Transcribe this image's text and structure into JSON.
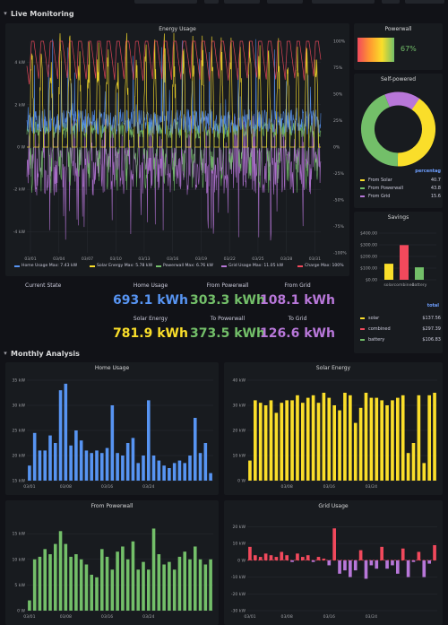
{
  "rows": {
    "live": "Live Monitoring",
    "monthly": "Monthly Analysis"
  },
  "colors": {
    "home": "#5794f2",
    "solar": "#fade2a",
    "powerwall": "#73bf69",
    "grid": "#b877d9",
    "charge": "#f2495c"
  },
  "energy_usage": {
    "title": "Energy Usage",
    "y_left_ticks": [
      "4 kW",
      "2 kW",
      "0 W",
      "-2 kW",
      "-4 kW"
    ],
    "y_right_ticks": [
      "100%",
      "75%",
      "50%",
      "25%",
      "0%",
      "-25%",
      "-50%",
      "-75%",
      "-100%"
    ],
    "x_ticks": [
      "03/01",
      "03/04",
      "03/07",
      "03/10",
      "03/13",
      "03/16",
      "03/19",
      "03/22",
      "03/25",
      "03/28",
      "03/31"
    ],
    "legend": [
      {
        "key": "home",
        "text": "Home Usage  Max: 7.43 kW"
      },
      {
        "key": "solar",
        "text": "Solar Energy  Max: 5.78 kW"
      },
      {
        "key": "powerwall",
        "text": "Powerwall  Max: 6.76 kW"
      },
      {
        "key": "grid",
        "text": "Grid Usage  Max: 11.05 kW"
      },
      {
        "key": "charge",
        "text": "Charge  Max: 100%"
      }
    ]
  },
  "powerwall": {
    "title": "Powerwall",
    "value": "67%",
    "level": 0.67
  },
  "self_powered": {
    "title": "Self-powered",
    "header": "percentag",
    "items": [
      {
        "key": "solar",
        "label": "From Solar",
        "value": "40.7",
        "fraction": 0.407
      },
      {
        "key": "powerwall",
        "label": "From Powerwall",
        "value": "43.8",
        "fraction": 0.438
      },
      {
        "key": "grid",
        "label": "From Grid",
        "value": "15.6",
        "fraction": 0.156
      }
    ]
  },
  "savings": {
    "title": "Savings",
    "y_ticks": [
      "$400.00",
      "$300.00",
      "$200.00",
      "$100.00",
      "$0.00"
    ],
    "bars": [
      {
        "key": "solar",
        "label": "solar",
        "value": 137.56
      },
      {
        "key": "charge",
        "label": "combined",
        "value": 297.39
      },
      {
        "key": "powerwall",
        "label": "battery",
        "value": 106.83
      }
    ],
    "table_header": "total",
    "table": [
      {
        "key": "solar",
        "label": "solar",
        "value": "$137.56"
      },
      {
        "key": "charge",
        "label": "combined",
        "value": "$297.39"
      },
      {
        "key": "powerwall",
        "label": "battery",
        "value": "$106.83"
      }
    ]
  },
  "stats": {
    "current_state": "Current State",
    "home_usage": {
      "title": "Home Usage",
      "value": "693.1 kWh"
    },
    "from_powerwall": {
      "title": "From Powerwall",
      "value": "303.3 kWh"
    },
    "from_grid": {
      "title": "From Grid",
      "value": "108.1 kWh"
    },
    "solar_energy": {
      "title": "Solar Energy",
      "value": "781.9 kWh"
    },
    "to_powerwall": {
      "title": "To Powerwall",
      "value": "373.5 kWh"
    },
    "to_grid": {
      "title": "To Grid",
      "value": "126.6 kWh"
    }
  },
  "chart_data": [
    {
      "type": "bar",
      "title": "Home Usage",
      "x_ticks": [
        "03/01",
        "03/08",
        "03/16",
        "03/24"
      ],
      "y_ticks": [
        "35 kW",
        "30 kW",
        "25 kW",
        "20 kW",
        "15 kW"
      ],
      "ylim": [
        15,
        35
      ],
      "values": [
        18,
        24.5,
        21,
        21,
        24,
        22.5,
        33,
        34.3,
        22,
        25,
        23,
        21,
        20.5,
        21,
        20.5,
        21.5,
        30,
        20.5,
        20,
        22.5,
        23.5,
        18.5,
        20,
        31,
        20,
        19,
        18,
        17.5,
        18.5,
        19,
        18.5,
        20,
        27.5,
        20.5,
        22.5,
        16.5
      ]
    },
    {
      "type": "bar",
      "title": "Solar Energy",
      "x_ticks": [
        "03/08",
        "03/16",
        "03/24"
      ],
      "y_ticks": [
        "40 kW",
        "30 kW",
        "20 kW",
        "10 kW",
        "0 W"
      ],
      "ylim": [
        0,
        40
      ],
      "values": [
        8,
        32,
        31,
        30,
        32,
        27,
        31,
        32,
        32,
        34,
        31,
        33,
        34,
        31,
        35,
        33,
        30,
        28,
        35,
        34,
        23,
        29,
        35,
        33,
        33,
        32,
        30,
        32,
        33,
        34,
        11,
        15,
        34,
        7,
        34,
        35
      ]
    },
    {
      "type": "bar",
      "title": "From Powerwall",
      "x_ticks": [
        "03/01",
        "03/08",
        "03/16",
        "03/24"
      ],
      "y_ticks": [
        "15 kW",
        "10 kW",
        "5 kW",
        "0 W"
      ],
      "ylim": [
        0,
        18
      ],
      "values": [
        2,
        10,
        10.5,
        12,
        11,
        13,
        15.5,
        13,
        10.5,
        11,
        10,
        9,
        7,
        6.5,
        12,
        10.5,
        8,
        11.5,
        12.5,
        10,
        13.5,
        8,
        9.5,
        8,
        16,
        11,
        9,
        9.5,
        8,
        10.5,
        11.5,
        10,
        12.5,
        10,
        9,
        10
      ]
    },
    {
      "type": "bar",
      "title": "Grid Usage",
      "x_ticks": [
        "03/01",
        "03/08",
        "03/16",
        "03/24"
      ],
      "y_ticks": [
        "20 kW",
        "10 kW",
        "0 W",
        "-10 kW",
        "-20 kW",
        "-30 kW"
      ],
      "ylim": [
        -30,
        25
      ],
      "values": [
        8,
        3,
        2,
        4,
        3,
        2,
        5,
        3,
        -1,
        4,
        2,
        3,
        -1,
        2,
        1,
        -3,
        19,
        -8,
        -6,
        -10,
        -6,
        6,
        -11,
        -3,
        -5,
        8,
        -5,
        -3,
        -8,
        7,
        -10,
        -1,
        5,
        -10,
        -2,
        9
      ]
    }
  ]
}
